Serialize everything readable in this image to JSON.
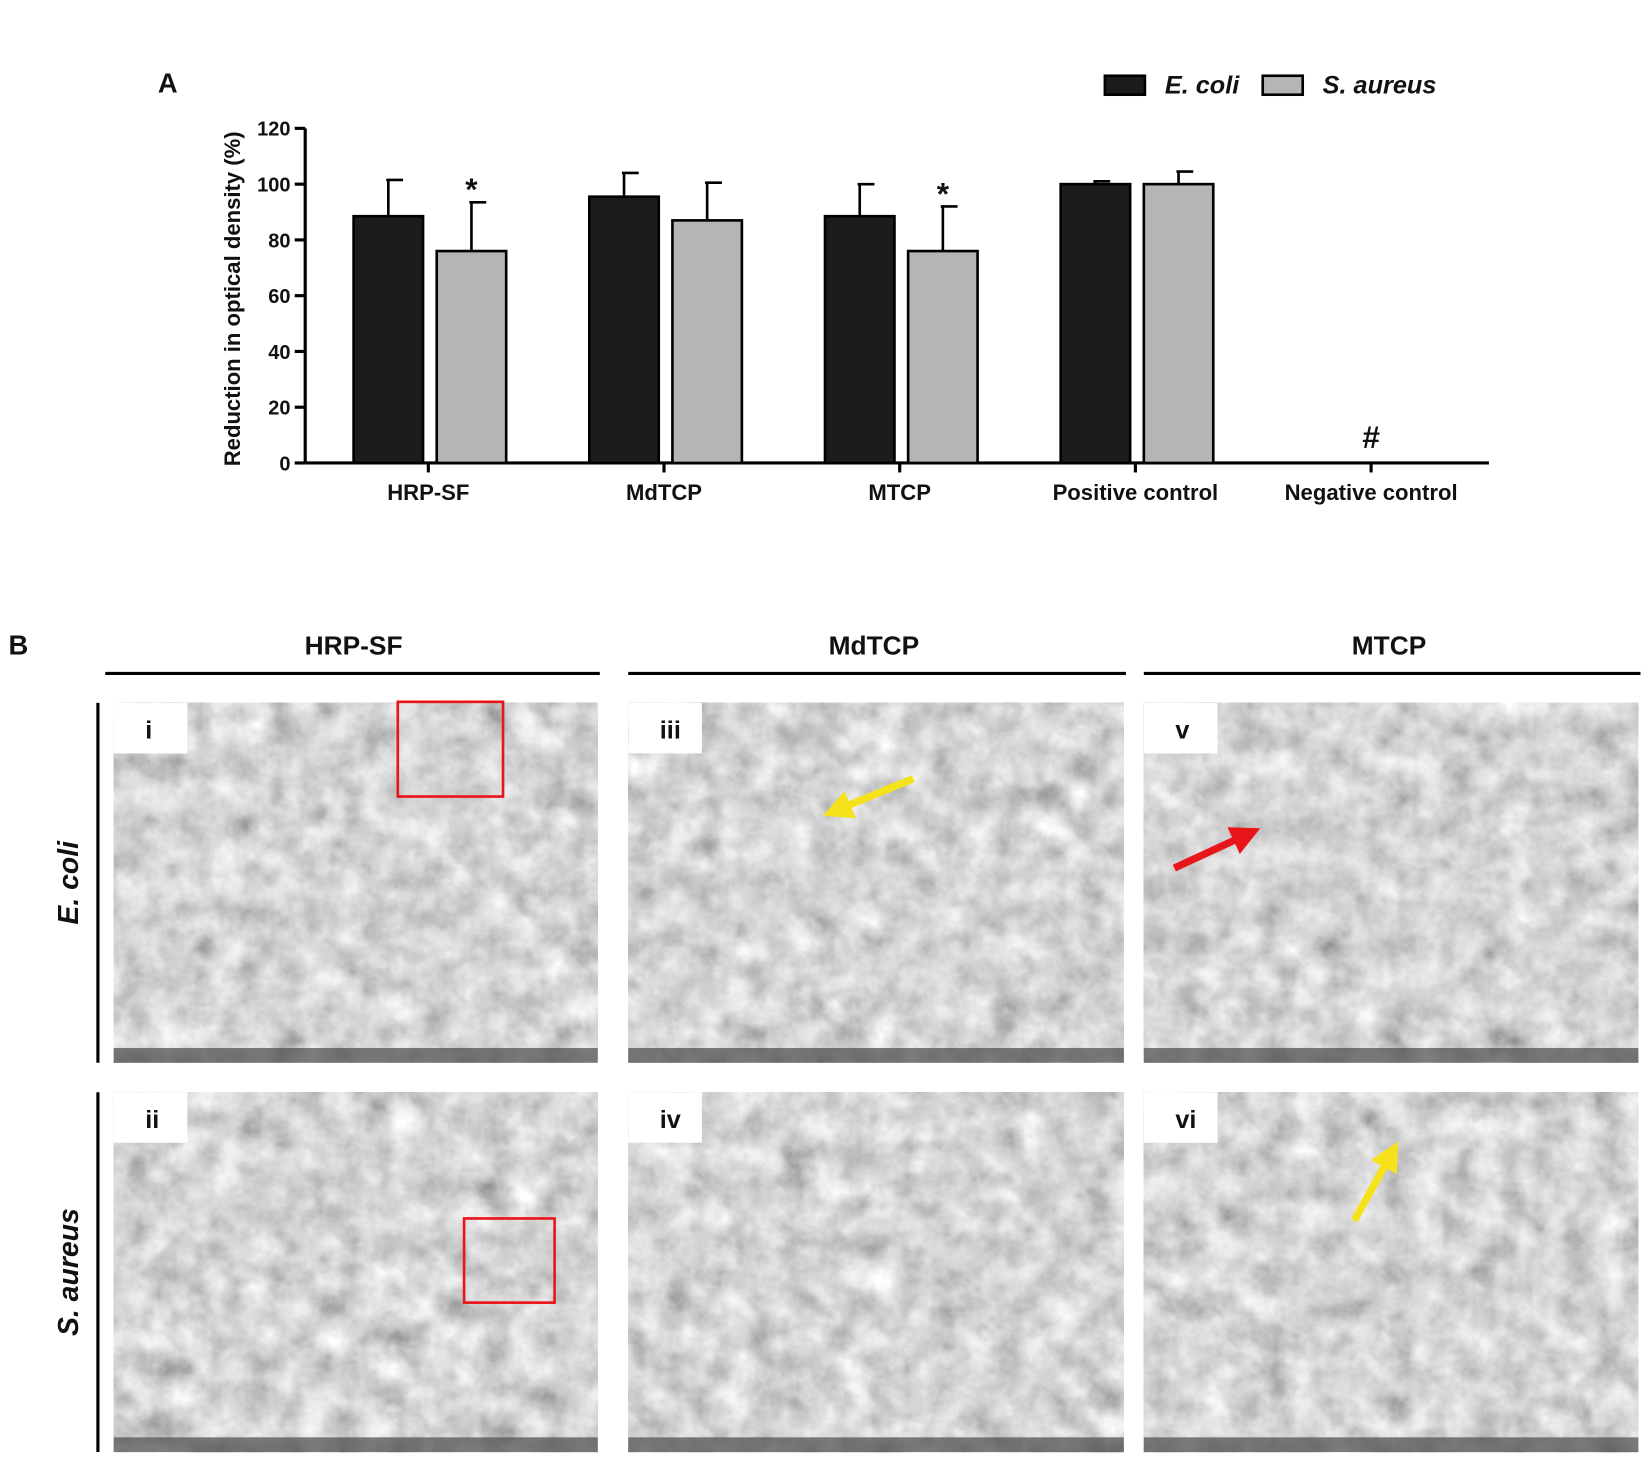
{
  "chart_data": {
    "type": "bar",
    "panel_label": "A",
    "y_label": "Reduction in optical density (%)",
    "categories": [
      "HRP-SF",
      "MdTCP",
      "MTCP",
      "Positive control",
      "Negative control"
    ],
    "series": [
      {
        "name": "E. coli",
        "color": "#1c1c1c",
        "values": [
          88.5,
          95.5,
          88.5,
          100,
          null
        ],
        "errors": [
          13,
          8.5,
          11.5,
          1,
          null
        ]
      },
      {
        "name": "S. aureus",
        "color": "#b5b5b5",
        "values": [
          76,
          87,
          76,
          100,
          null
        ],
        "errors": [
          17.5,
          13.5,
          16,
          4.5,
          null
        ]
      }
    ],
    "annotations": [
      {
        "text": "*",
        "category": "HRP-SF",
        "series": "S. aureus"
      },
      {
        "text": "*",
        "category": "MTCP",
        "series": "S. aureus"
      },
      {
        "text": "#",
        "category": "Negative control"
      }
    ],
    "ylim": [
      0,
      120
    ],
    "yticks": [
      0,
      20,
      40,
      60,
      80,
      100,
      120
    ],
    "grid": false,
    "legend": "top-right"
  },
  "panel_b": {
    "label": "B",
    "columns": [
      "HRP-SF",
      "MdTCP",
      "MTCP"
    ],
    "rows": [
      "E. coli",
      "S. aureus"
    ],
    "images": [
      [
        "i",
        "iii",
        "v"
      ],
      [
        "ii",
        "iv",
        "vi"
      ]
    ]
  }
}
